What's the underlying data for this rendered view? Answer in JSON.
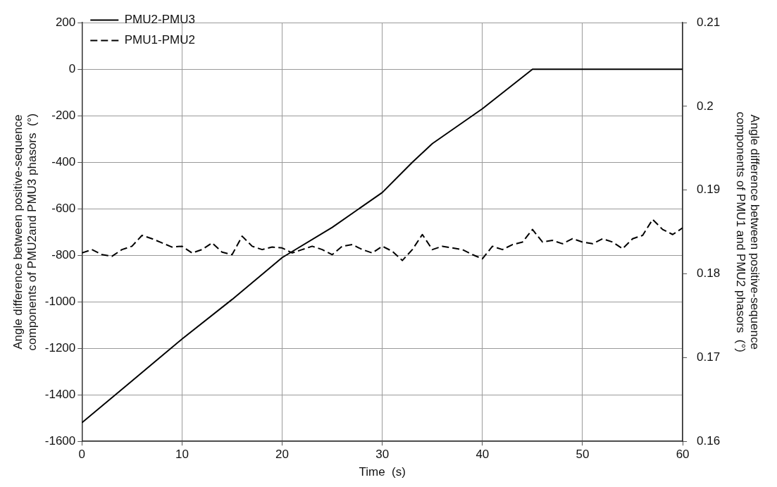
{
  "chart_data": {
    "type": "line",
    "xlabel": "Time  (s)",
    "ylabel": "Angle difference between positive-sequence components of PMU2and PMU3 phasors  (°)",
    "y2label": "Angle difference between positive-sequence components of PMU1 and PMU2 phasors  (°)",
    "xlim": [
      0,
      60
    ],
    "xticks": [
      0,
      10,
      20,
      30,
      40,
      50,
      60
    ],
    "ylim": [
      -1600,
      200
    ],
    "yticks": [
      -1600,
      -1400,
      -1200,
      -1000,
      -800,
      -600,
      -400,
      -200,
      0,
      200
    ],
    "y2lim": [
      0.16,
      0.21
    ],
    "y2ticks": [
      0.16,
      0.17,
      0.18,
      0.19,
      0.2,
      0.21
    ],
    "grid": true,
    "legend": "top left",
    "marker": "none",
    "series": [
      {
        "name": "PMU2-PMU3",
        "color": "#000000",
        "line_style": "solid",
        "x": [
          0,
          5,
          10,
          15,
          20,
          25,
          30,
          33,
          35,
          40,
          45,
          60
        ],
        "values": [
          -1520,
          -1340,
          -1160,
          -990,
          -810,
          -680,
          -530,
          -400,
          -320,
          -170,
          0,
          0
        ]
      },
      {
        "name": "PMU1-PMU2",
        "color": "#000000",
        "line_style": "dashed",
        "axis": "y2",
        "x": [
          0,
          1,
          2,
          3,
          4,
          5,
          6,
          7,
          8,
          9,
          10,
          11,
          12,
          13,
          14,
          15,
          16,
          17,
          18,
          19,
          20,
          21,
          22,
          23,
          24,
          25,
          26,
          27,
          28,
          29,
          30,
          31,
          32,
          33,
          34,
          35,
          36,
          37,
          38,
          39,
          40,
          41,
          42,
          43,
          44,
          45,
          46,
          47,
          48,
          49,
          50,
          51,
          52,
          53,
          54,
          55,
          56,
          57,
          58,
          59,
          60
        ],
        "values": [
          0.1825,
          0.1829,
          0.1823,
          0.1821,
          0.1829,
          0.1833,
          0.1846,
          0.1842,
          0.1837,
          0.1832,
          0.1833,
          0.1825,
          0.1829,
          0.1837,
          0.1826,
          0.1823,
          0.1845,
          0.1833,
          0.1829,
          0.1832,
          0.1831,
          0.1825,
          0.1829,
          0.1833,
          0.1829,
          0.1823,
          0.1833,
          0.1835,
          0.1829,
          0.1825,
          0.1833,
          0.1827,
          0.1816,
          0.1829,
          0.1847,
          0.1829,
          0.1833,
          0.1831,
          0.1829,
          0.1823,
          0.1818,
          0.1833,
          0.1829,
          0.1835,
          0.1838,
          0.1853,
          0.1838,
          0.184,
          0.1836,
          0.1842,
          0.1838,
          0.1836,
          0.1842,
          0.1838,
          0.183,
          0.1842,
          0.1846,
          0.1865,
          0.1853,
          0.1847,
          0.1855
        ]
      }
    ]
  }
}
